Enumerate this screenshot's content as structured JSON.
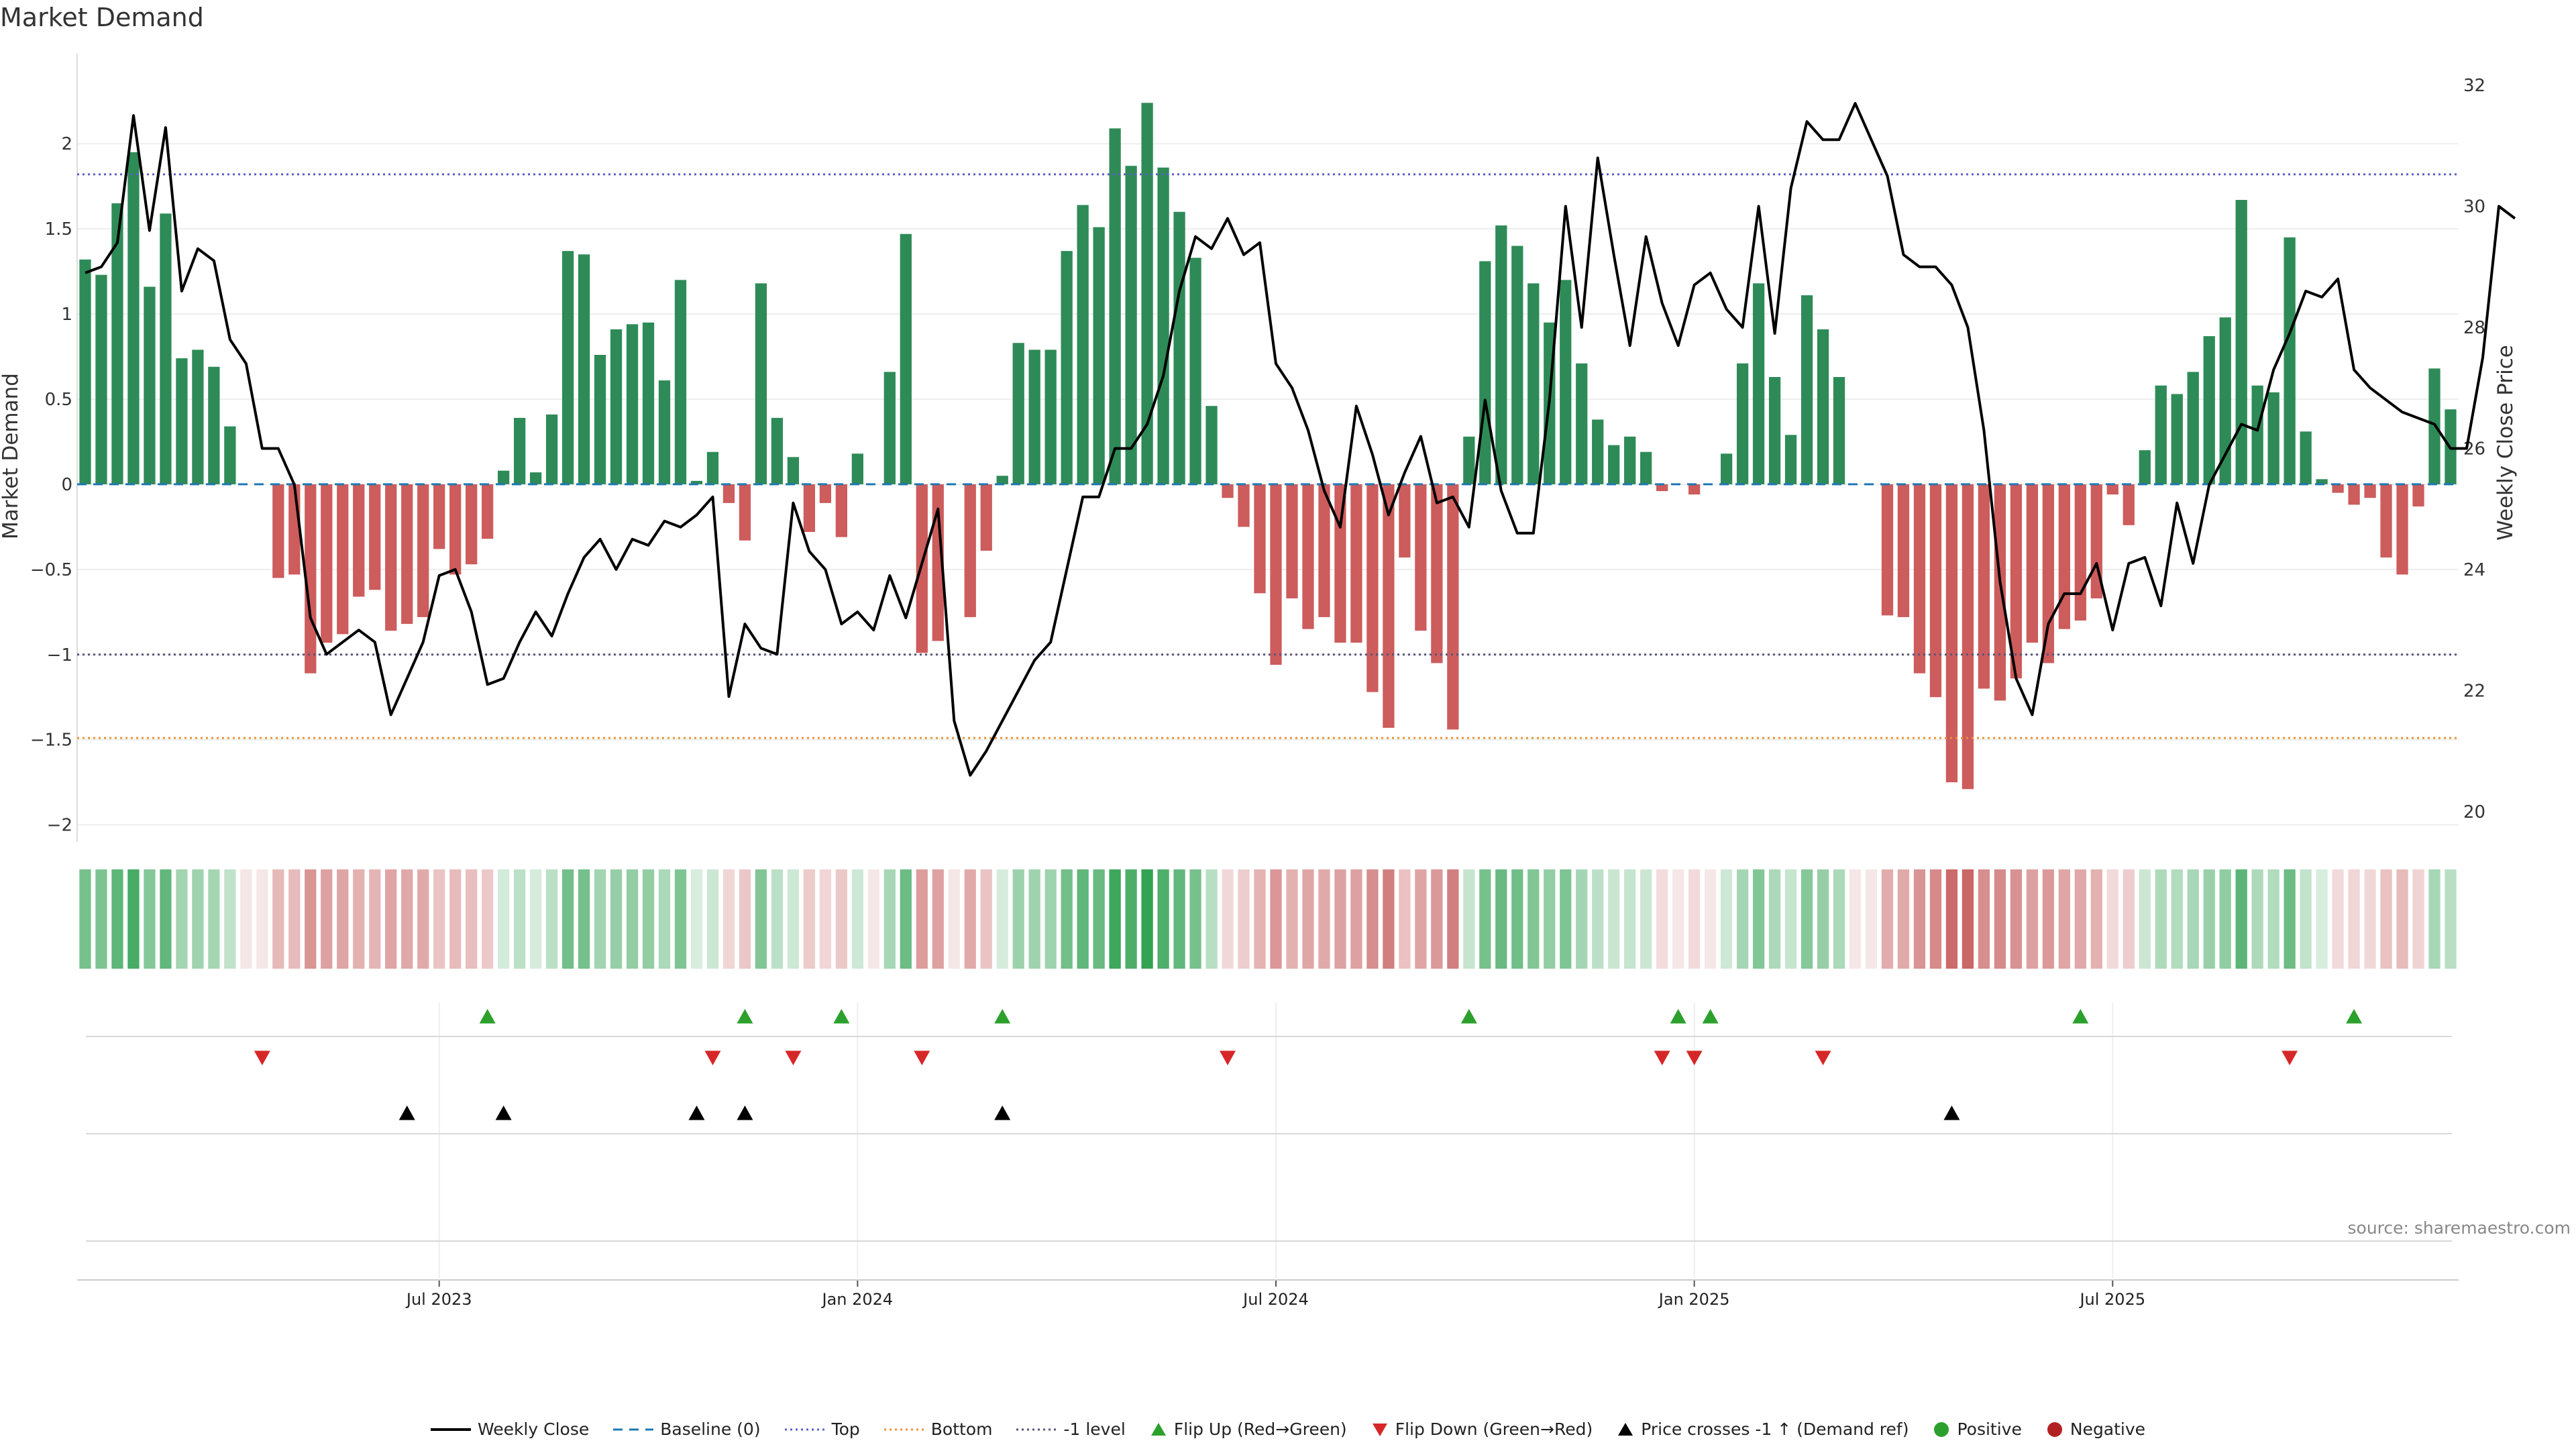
{
  "title": "Market Demand",
  "source": "source: sharemaestro.com",
  "colors": {
    "positive": "#2e8b57",
    "negative": "#cd5c5c",
    "price": "#000000",
    "baseline": "#1f77b4",
    "top": "#5b5fc7",
    "bottom": "#e8923a",
    "minus1": "#55557a",
    "flipup": "#2ca02c",
    "flipdown": "#d62728",
    "cross": "#000000"
  },
  "legend": [
    {
      "key": "line",
      "label": "Weekly Close",
      "color": "#000000"
    },
    {
      "key": "dash",
      "label": "Baseline (0)",
      "color": "#1f77b4"
    },
    {
      "key": "dot",
      "label": "Top",
      "color": "#5b5fc7"
    },
    {
      "key": "dot",
      "label": "Bottom",
      "color": "#e8923a"
    },
    {
      "key": "dot",
      "label": "-1 level",
      "color": "#55557a"
    },
    {
      "key": "up",
      "label": "Flip Up (Red→Green)",
      "color": "#2ca02c"
    },
    {
      "key": "down",
      "label": "Flip Down (Green→Red)",
      "color": "#d62728"
    },
    {
      "key": "up",
      "label": "Price crosses -1 ↑ (Demand ref)",
      "color": "#000000"
    },
    {
      "key": "circle",
      "label": "Positive",
      "color": "#2ca02c"
    },
    {
      "key": "circle",
      "label": "Negative",
      "color": "#b22222"
    }
  ],
  "chart_data": {
    "type": "bar",
    "title": "Market Demand",
    "ylabel": "Market Demand",
    "y2label": "Weekly Close Price",
    "ylim": [
      -2.1,
      2.45
    ],
    "y2lim": [
      19.5,
      32.3
    ],
    "yticks": [
      -2,
      -1.5,
      -1,
      -0.5,
      0,
      0.5,
      1,
      1.5,
      2
    ],
    "ytick_labels": [
      "−2",
      "−1.5",
      "−1",
      "−0.5",
      "0",
      "0.5",
      "1",
      "1.5",
      "2"
    ],
    "y2ticks": [
      20,
      22,
      24,
      26,
      28,
      30,
      32
    ],
    "xtick_labels": [
      "Jul 2023",
      "Jan 2024",
      "Jul 2024",
      "Jan 2025",
      "Jul 2025"
    ],
    "xtick_index": [
      22,
      48,
      74,
      100,
      126
    ],
    "levels": {
      "top": 1.82,
      "bottom": -1.49,
      "minus1": -1.0,
      "baseline": 0
    },
    "demand": [
      1.32,
      1.23,
      1.65,
      1.95,
      1.16,
      1.59,
      0.74,
      0.79,
      0.69,
      0.34,
      0,
      0,
      -0.55,
      -0.53,
      -1.11,
      -0.93,
      -0.88,
      -0.66,
      -0.62,
      -0.86,
      -0.82,
      -0.78,
      -0.38,
      -0.53,
      -0.47,
      -0.32,
      0.08,
      0.39,
      0.07,
      0.41,
      1.37,
      1.35,
      0.76,
      0.91,
      0.94,
      0.95,
      0.61,
      1.2,
      0.02,
      0.19,
      -0.11,
      -0.33,
      1.18,
      0.39,
      0.16,
      -0.28,
      -0.11,
      -0.31,
      0.18,
      0,
      0.66,
      1.47,
      -0.99,
      -0.92,
      0,
      -0.78,
      -0.39,
      0.05,
      0.83,
      0.79,
      0.79,
      1.37,
      1.64,
      1.51,
      2.09,
      1.87,
      2.24,
      1.86,
      1.6,
      1.33,
      0.46,
      -0.08,
      -0.25,
      -0.64,
      -1.06,
      -0.67,
      -0.85,
      -0.78,
      -0.93,
      -0.93,
      -1.22,
      -1.43,
      -0.43,
      -0.86,
      -1.05,
      -1.44,
      0.28,
      1.31,
      1.52,
      1.4,
      1.18,
      0.95,
      1.2,
      0.71,
      0.38,
      0.23,
      0.28,
      0.19,
      -0.04,
      0,
      -0.06,
      0,
      0.18,
      0.71,
      1.18,
      0.63,
      0.29,
      1.11,
      0.91,
      0.63,
      0,
      0,
      -0.77,
      -0.78,
      -1.11,
      -1.25,
      -1.75,
      -1.79,
      -1.2,
      -1.27,
      -1.14,
      -0.93,
      -1.05,
      -0.85,
      -0.8,
      -0.67,
      -0.06,
      -0.24,
      0.2,
      0.58,
      0.53,
      0.66,
      0.87,
      0.98,
      1.67,
      0.58,
      0.54,
      1.45,
      0.31,
      0.03,
      -0.05,
      -0.12,
      -0.08,
      -0.43,
      -0.53,
      -0.13,
      0.68,
      0.44
    ],
    "close": [
      28.9,
      29.0,
      29.4,
      31.5,
      29.6,
      31.3,
      28.6,
      29.3,
      29.1,
      27.8,
      27.4,
      26.0,
      26.0,
      25.4,
      23.2,
      22.6,
      22.8,
      23.0,
      22.8,
      21.6,
      22.2,
      22.8,
      23.9,
      24.0,
      23.3,
      22.1,
      22.2,
      22.8,
      23.3,
      22.9,
      23.6,
      24.2,
      24.5,
      24.0,
      24.5,
      24.4,
      24.8,
      24.7,
      24.9,
      25.2,
      21.9,
      23.1,
      22.7,
      22.6,
      25.1,
      24.3,
      24.0,
      23.1,
      23.3,
      23.0,
      23.9,
      23.2,
      24.1,
      25.0,
      21.5,
      20.6,
      21.0,
      21.5,
      22.0,
      22.5,
      22.8,
      24.0,
      25.2,
      25.2,
      26.0,
      26.0,
      26.4,
      27.2,
      28.6,
      29.5,
      29.3,
      29.8,
      29.2,
      29.4,
      27.4,
      27.0,
      26.3,
      25.3,
      24.7,
      26.7,
      25.9,
      24.9,
      25.6,
      26.2,
      25.1,
      25.2,
      24.7,
      26.8,
      25.3,
      24.6,
      24.6,
      26.8,
      30.0,
      28.0,
      30.8,
      29.2,
      27.7,
      29.5,
      28.4,
      27.7,
      28.7,
      28.9,
      28.3,
      28.0,
      30.0,
      27.9,
      30.3,
      31.4,
      31.1,
      31.1,
      31.7,
      31.1,
      30.5,
      29.2,
      29.0,
      29.0,
      28.7,
      28.0,
      26.3,
      23.8,
      22.2,
      21.6,
      23.1,
      23.6,
      23.6,
      24.1,
      23.0,
      24.1,
      24.2,
      23.4,
      25.1,
      24.1,
      25.4,
      25.9,
      26.4,
      26.3,
      27.3,
      27.9,
      28.6,
      28.5,
      28.8,
      27.3,
      27.0,
      26.8,
      26.6,
      26.5,
      26.4,
      26.0,
      26.0,
      27.5,
      30.0,
      29.8
    ]
  },
  "flip_up_index": [
    25,
    41,
    47,
    57,
    86,
    99,
    101,
    124,
    141
  ],
  "flip_down_index": [
    11,
    39,
    44,
    52,
    71,
    98,
    100,
    108,
    137
  ],
  "cross_index": [
    20,
    26,
    38,
    41,
    57,
    116
  ]
}
